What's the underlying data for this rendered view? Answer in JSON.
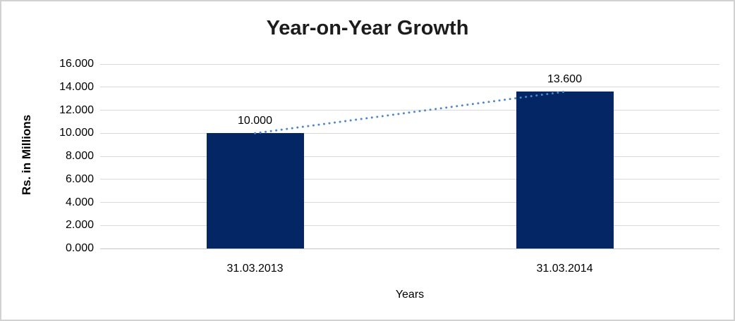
{
  "window": {
    "background": "#FFFFFF",
    "border_color": "#D1D1D1"
  },
  "chart_data": {
    "type": "bar",
    "title": "Year-on-Year Growth",
    "xlabel": "Years",
    "ylabel": "Rs. in Millions",
    "categories": [
      "31.03.2013",
      "31.03.2014"
    ],
    "values": [
      10.0,
      13.6
    ],
    "data_labels": [
      "10.000",
      "13.600"
    ],
    "bar_color": "#042664",
    "ylim": [
      0,
      16
    ],
    "ytick_step": 2,
    "ytick_labels": [
      "0.000",
      "2.000",
      "4.000",
      "6.000",
      "8.000",
      "10.000",
      "12.000",
      "14.000",
      "16.000"
    ],
    "grid": true,
    "gridline_color": "#D9D9D9",
    "axis_line_color": "#C4C4C4",
    "legend": "none",
    "trendline": {
      "type": "linear",
      "style": "dotted",
      "color": "#4E87C9"
    }
  }
}
